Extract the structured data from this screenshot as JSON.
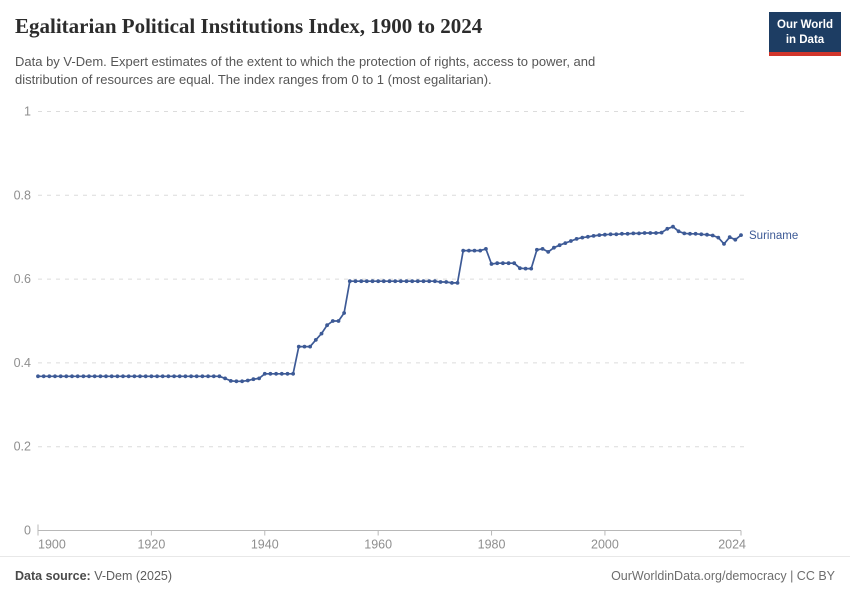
{
  "header": {
    "title": "Egalitarian Political Institutions Index, 1900 to 2024",
    "subtitle_lines": [
      "Data by V-Dem. Expert estimates of the extent to which the protection of rights, access to power, and",
      "distribution of resources are equal. The index ranges from 0 to 1 (most egalitarian)."
    ],
    "logo": {
      "line1": "Our World",
      "line2": "in Data",
      "bg_color": "#1d3d63",
      "accent_color": "#d1352b"
    }
  },
  "chart_data": {
    "type": "line",
    "title": "Egalitarian Political Institutions Index, 1900 to 2024",
    "xlabel": "",
    "ylabel": "",
    "xlim": [
      1900,
      2024
    ],
    "ylim": [
      0,
      1
    ],
    "x_ticks": [
      1900,
      1920,
      1940,
      1960,
      1980,
      2000,
      2024
    ],
    "y_ticks": [
      0,
      0.2,
      0.4,
      0.6,
      0.8,
      1
    ],
    "grid": "horizontal-dashed",
    "line_color": "#3d5a96",
    "grid_color": "#dcdcdc",
    "axis_color": "#b8b8b8",
    "tick_label_color": "#8f8f8f",
    "series": [
      {
        "name": "Suriname",
        "color": "#3d5a96",
        "years": [
          1900,
          1901,
          1902,
          1903,
          1904,
          1905,
          1906,
          1907,
          1908,
          1909,
          1910,
          1911,
          1912,
          1913,
          1914,
          1915,
          1916,
          1917,
          1918,
          1919,
          1920,
          1921,
          1922,
          1923,
          1924,
          1925,
          1926,
          1927,
          1928,
          1929,
          1930,
          1931,
          1932,
          1933,
          1934,
          1935,
          1936,
          1937,
          1938,
          1939,
          1940,
          1941,
          1942,
          1943,
          1944,
          1945,
          1946,
          1947,
          1948,
          1949,
          1950,
          1951,
          1952,
          1953,
          1954,
          1955,
          1956,
          1957,
          1958,
          1959,
          1960,
          1961,
          1962,
          1963,
          1964,
          1965,
          1966,
          1967,
          1968,
          1969,
          1970,
          1971,
          1972,
          1973,
          1974,
          1975,
          1976,
          1977,
          1978,
          1979,
          1980,
          1981,
          1982,
          1983,
          1984,
          1985,
          1986,
          1987,
          1988,
          1989,
          1990,
          1991,
          1992,
          1993,
          1994,
          1995,
          1996,
          1997,
          1998,
          1999,
          2000,
          2001,
          2002,
          2003,
          2004,
          2005,
          2006,
          2007,
          2008,
          2009,
          2010,
          2011,
          2012,
          2013,
          2014,
          2015,
          2016,
          2017,
          2018,
          2019,
          2020,
          2021,
          2022,
          2023,
          2024
        ],
        "values": [
          0.368,
          0.368,
          0.368,
          0.368,
          0.368,
          0.368,
          0.368,
          0.368,
          0.368,
          0.368,
          0.368,
          0.368,
          0.368,
          0.368,
          0.368,
          0.368,
          0.368,
          0.368,
          0.368,
          0.368,
          0.368,
          0.368,
          0.368,
          0.368,
          0.368,
          0.368,
          0.368,
          0.368,
          0.368,
          0.368,
          0.368,
          0.368,
          0.368,
          0.363,
          0.357,
          0.356,
          0.356,
          0.358,
          0.361,
          0.363,
          0.374,
          0.374,
          0.374,
          0.374,
          0.374,
          0.374,
          0.439,
          0.439,
          0.439,
          0.455,
          0.47,
          0.49,
          0.5,
          0.5,
          0.519,
          0.595,
          0.595,
          0.595,
          0.595,
          0.595,
          0.595,
          0.595,
          0.595,
          0.595,
          0.595,
          0.595,
          0.595,
          0.595,
          0.595,
          0.595,
          0.595,
          0.593,
          0.593,
          0.591,
          0.591,
          0.668,
          0.668,
          0.668,
          0.668,
          0.672,
          0.636,
          0.638,
          0.638,
          0.638,
          0.638,
          0.626,
          0.625,
          0.625,
          0.67,
          0.672,
          0.665,
          0.675,
          0.681,
          0.686,
          0.691,
          0.696,
          0.699,
          0.701,
          0.703,
          0.705,
          0.706,
          0.707,
          0.707,
          0.708,
          0.708,
          0.709,
          0.709,
          0.71,
          0.71,
          0.71,
          0.711,
          0.72,
          0.725,
          0.714,
          0.709,
          0.708,
          0.708,
          0.707,
          0.706,
          0.704,
          0.699,
          0.684,
          0.7,
          0.694,
          0.705
        ]
      }
    ],
    "legend": "entity label at line end"
  },
  "footer": {
    "source_label": "Data source:",
    "source_value": " V-Dem (2025)",
    "credit": "OurWorldinData.org/democracy | CC BY"
  }
}
